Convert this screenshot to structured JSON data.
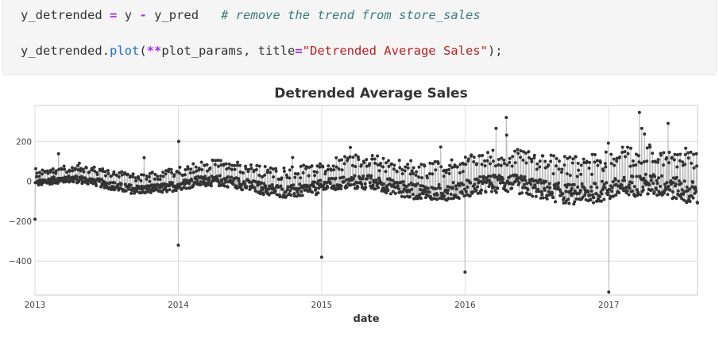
{
  "code": {
    "line1": {
      "var": "y_detrended",
      "eq": "=",
      "lhs": "y",
      "minus": "-",
      "rhs": "y_pred",
      "comment": "# remove the trend from store_sales"
    },
    "line2": {
      "obj": "y_detrended.",
      "method": "plot",
      "paren_open": "(",
      "star": "**",
      "args": "plot_params, title",
      "eq": "=",
      "title_str": "\"Detrended Average Sales\"",
      "paren_close": ");"
    }
  },
  "chart_data": {
    "type": "line",
    "title": "Detrended Average Sales",
    "xlabel": "date",
    "ylabel": "",
    "xlim": [
      "2013-01-01",
      "2017-08-15"
    ],
    "ylim": [
      -570,
      380
    ],
    "x_ticks": [
      "2013",
      "2014",
      "2015",
      "2016",
      "2017"
    ],
    "y_ticks": [
      200,
      0,
      -200,
      -400
    ],
    "y_tick_labels": [
      "200",
      "0",
      "−200",
      "−400"
    ],
    "grid": true,
    "colors": {
      "line": "#bdbdbd",
      "marker": "#333333"
    },
    "series": [
      {
        "values_description": "daily detrended average sales",
        "anchor_points": [
          {
            "x": "2013-01-01",
            "y": -190
          },
          {
            "x": "2014-01-01",
            "y": -320
          },
          {
            "x": "2014-01-02",
            "y": 200
          },
          {
            "x": "2015-01-01",
            "y": -380
          },
          {
            "x": "2016-01-01",
            "y": -455
          },
          {
            "x": "2016-04-15",
            "y": 320
          },
          {
            "x": "2017-01-01",
            "y": -555
          },
          {
            "x": "2017-03-20",
            "y": 345
          },
          {
            "x": "2017-06-01",
            "y": 290
          }
        ],
        "approx_range": [
          -170,
          250
        ]
      }
    ]
  }
}
